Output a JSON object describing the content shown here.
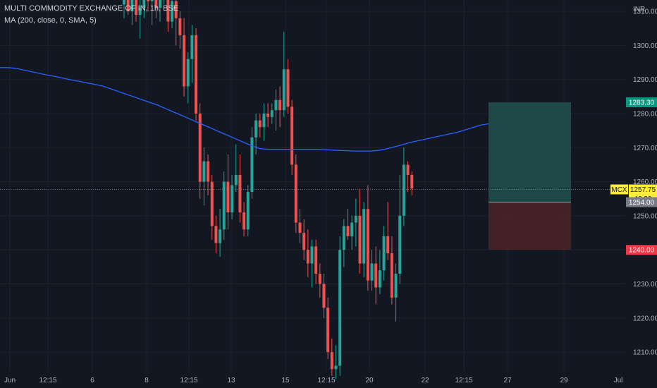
{
  "symbol_title": "MULTI COMMODITY EXCHANGE OF IN, 1h, BSE",
  "indicator": "MA (200, close, 0, SMA, 5)",
  "currency": "INR",
  "colors": {
    "background": "#131722",
    "grid": "#1e222d",
    "up": "#26a69a",
    "down": "#ef5350",
    "ma": "#2962ff",
    "profit_zone": "#1f4e4b",
    "loss_zone": "#4a2228",
    "target_tag": "#089981",
    "stop_tag": "#f23645",
    "entry_tag": "#787b86",
    "price_tag": "#ffeb3b"
  },
  "chart_data": {
    "type": "candlestick",
    "ylim": [
      1202,
      1316
    ],
    "y_ticks": [
      1210,
      1220,
      1230,
      1240,
      1250,
      1260,
      1270,
      1280,
      1290,
      1300,
      1310
    ],
    "x_tick_labels": [
      "Jun",
      "12:15",
      "6",
      "8",
      "12:15",
      "13",
      "15",
      "12:15",
      "20",
      "22",
      "12:15",
      "27",
      "29",
      "Jul"
    ],
    "moving_average": [
      1293.5,
      1293.5,
      1293.3,
      1292.8,
      1292.3,
      1291.8,
      1291.3,
      1290.9,
      1290.4,
      1289.9,
      1289.5,
      1289.0,
      1288.6,
      1288.1,
      1287.3,
      1286.5,
      1285.7,
      1284.9,
      1284.1,
      1283.3,
      1282.5,
      1281.5,
      1280.5,
      1279.5,
      1278.5,
      1277.5,
      1276.5,
      1275.5,
      1274.5,
      1273.5,
      1272.5,
      1271.5,
      1270.5,
      1269.7,
      1269.5,
      1269.5,
      1269.5,
      1269.5,
      1269.5,
      1269.5,
      1269.5,
      1269.4,
      1269.3,
      1269.2,
      1269.1,
      1269.0,
      1269.0,
      1269.0,
      1269.2,
      1269.6,
      1270.2,
      1270.8,
      1271.5,
      1272.0,
      1272.5,
      1273.0,
      1273.5,
      1274.0,
      1274.5,
      1275.2,
      1275.9,
      1276.6,
      1277.0
    ],
    "ma_last": 1277.5,
    "candles": [
      {
        "o": 1312,
        "h": 1318,
        "l": 1308,
        "c": 1316
      },
      {
        "o": 1316,
        "h": 1318,
        "l": 1309,
        "c": 1310
      },
      {
        "o": 1310,
        "h": 1316,
        "l": 1306,
        "c": 1314
      },
      {
        "o": 1314,
        "h": 1318,
        "l": 1307,
        "c": 1309
      },
      {
        "o": 1309,
        "h": 1314,
        "l": 1302,
        "c": 1311
      },
      {
        "o": 1311,
        "h": 1318,
        "l": 1308,
        "c": 1315
      },
      {
        "o": 1315,
        "h": 1318,
        "l": 1310,
        "c": 1313
      },
      {
        "o": 1313,
        "h": 1318,
        "l": 1306,
        "c": 1316
      },
      {
        "o": 1316,
        "h": 1318,
        "l": 1308,
        "c": 1311
      },
      {
        "o": 1311,
        "h": 1316,
        "l": 1307,
        "c": 1314
      },
      {
        "o": 1314,
        "h": 1318,
        "l": 1312,
        "c": 1316
      },
      {
        "o": 1316,
        "h": 1318,
        "l": 1304,
        "c": 1307
      },
      {
        "o": 1307,
        "h": 1316,
        "l": 1305,
        "c": 1313
      },
      {
        "o": 1313,
        "h": 1318,
        "l": 1300,
        "c": 1308
      },
      {
        "o": 1308,
        "h": 1310,
        "l": 1299,
        "c": 1303
      },
      {
        "o": 1303,
        "h": 1308,
        "l": 1285,
        "c": 1288
      },
      {
        "o": 1288,
        "h": 1298,
        "l": 1283,
        "c": 1296
      },
      {
        "o": 1296,
        "h": 1306,
        "l": 1289,
        "c": 1303
      },
      {
        "o": 1303,
        "h": 1305,
        "l": 1278,
        "c": 1280
      },
      {
        "o": 1280,
        "h": 1283,
        "l": 1255,
        "c": 1260
      },
      {
        "o": 1260,
        "h": 1270,
        "l": 1253,
        "c": 1266
      },
      {
        "o": 1266,
        "h": 1268,
        "l": 1256,
        "c": 1260
      },
      {
        "o": 1260,
        "h": 1262,
        "l": 1243,
        "c": 1247
      },
      {
        "o": 1247,
        "h": 1250,
        "l": 1239,
        "c": 1242
      },
      {
        "o": 1242,
        "h": 1252,
        "l": 1238,
        "c": 1246
      },
      {
        "o": 1246,
        "h": 1263,
        "l": 1243,
        "c": 1260
      },
      {
        "o": 1260,
        "h": 1268,
        "l": 1246,
        "c": 1251
      },
      {
        "o": 1251,
        "h": 1262,
        "l": 1249,
        "c": 1259
      },
      {
        "o": 1259,
        "h": 1271,
        "l": 1257,
        "c": 1262
      },
      {
        "o": 1262,
        "h": 1268,
        "l": 1248,
        "c": 1251
      },
      {
        "o": 1251,
        "h": 1254,
        "l": 1244,
        "c": 1246
      },
      {
        "o": 1246,
        "h": 1259,
        "l": 1244,
        "c": 1257
      },
      {
        "o": 1257,
        "h": 1276,
        "l": 1255,
        "c": 1273
      },
      {
        "o": 1273,
        "h": 1280,
        "l": 1268,
        "c": 1278
      },
      {
        "o": 1278,
        "h": 1280,
        "l": 1273,
        "c": 1276
      },
      {
        "o": 1276,
        "h": 1283,
        "l": 1272,
        "c": 1280
      },
      {
        "o": 1280,
        "h": 1283,
        "l": 1276,
        "c": 1279
      },
      {
        "o": 1279,
        "h": 1283,
        "l": 1277,
        "c": 1281
      },
      {
        "o": 1281,
        "h": 1287,
        "l": 1275,
        "c": 1284
      },
      {
        "o": 1284,
        "h": 1288,
        "l": 1276,
        "c": 1281
      },
      {
        "o": 1281,
        "h": 1304,
        "l": 1279,
        "c": 1293
      },
      {
        "o": 1293,
        "h": 1296,
        "l": 1280,
        "c": 1282
      },
      {
        "o": 1282,
        "h": 1284,
        "l": 1262,
        "c": 1265
      },
      {
        "o": 1265,
        "h": 1268,
        "l": 1245,
        "c": 1248
      },
      {
        "o": 1248,
        "h": 1252,
        "l": 1242,
        "c": 1245
      },
      {
        "o": 1245,
        "h": 1249,
        "l": 1237,
        "c": 1240
      },
      {
        "o": 1240,
        "h": 1246,
        "l": 1232,
        "c": 1236
      },
      {
        "o": 1236,
        "h": 1243,
        "l": 1229,
        "c": 1241
      },
      {
        "o": 1241,
        "h": 1243,
        "l": 1230,
        "c": 1233
      },
      {
        "o": 1233,
        "h": 1236,
        "l": 1226,
        "c": 1230
      },
      {
        "o": 1230,
        "h": 1233,
        "l": 1220,
        "c": 1223
      },
      {
        "o": 1223,
        "h": 1226,
        "l": 1208,
        "c": 1210
      },
      {
        "o": 1210,
        "h": 1214,
        "l": 1203,
        "c": 1205
      },
      {
        "o": 1205,
        "h": 1212,
        "l": 1202,
        "c": 1206
      },
      {
        "o": 1206,
        "h": 1244,
        "l": 1203,
        "c": 1240
      },
      {
        "o": 1240,
        "h": 1249,
        "l": 1235,
        "c": 1247
      },
      {
        "o": 1247,
        "h": 1252,
        "l": 1243,
        "c": 1244
      },
      {
        "o": 1244,
        "h": 1250,
        "l": 1240,
        "c": 1248
      },
      {
        "o": 1248,
        "h": 1255,
        "l": 1241,
        "c": 1250
      },
      {
        "o": 1250,
        "h": 1258,
        "l": 1233,
        "c": 1236
      },
      {
        "o": 1236,
        "h": 1254,
        "l": 1232,
        "c": 1252
      },
      {
        "o": 1252,
        "h": 1259,
        "l": 1228,
        "c": 1231
      },
      {
        "o": 1231,
        "h": 1240,
        "l": 1228,
        "c": 1236
      },
      {
        "o": 1236,
        "h": 1241,
        "l": 1224,
        "c": 1229
      },
      {
        "o": 1229,
        "h": 1240,
        "l": 1227,
        "c": 1234
      },
      {
        "o": 1234,
        "h": 1247,
        "l": 1231,
        "c": 1244
      },
      {
        "o": 1244,
        "h": 1254,
        "l": 1237,
        "c": 1239
      },
      {
        "o": 1239,
        "h": 1244,
        "l": 1224,
        "c": 1226
      },
      {
        "o": 1226,
        "h": 1236,
        "l": 1219,
        "c": 1233
      },
      {
        "o": 1233,
        "h": 1262,
        "l": 1230,
        "c": 1250
      },
      {
        "o": 1250,
        "h": 1270,
        "l": 1247,
        "c": 1265
      },
      {
        "o": 1265,
        "h": 1266,
        "l": 1257,
        "c": 1262
      },
      {
        "o": 1262,
        "h": 1263,
        "l": 1256,
        "c": 1258
      }
    ]
  },
  "position": {
    "target": "1283.30",
    "entry": "1254.00",
    "stop": "1240.00",
    "target_value": 1283.3,
    "entry_value": 1254.0,
    "stop_value": 1240.0
  },
  "price_tag": {
    "symbol": "MCX",
    "price": "1257.75",
    "countdown": "42:39",
    "value": 1257.75
  }
}
